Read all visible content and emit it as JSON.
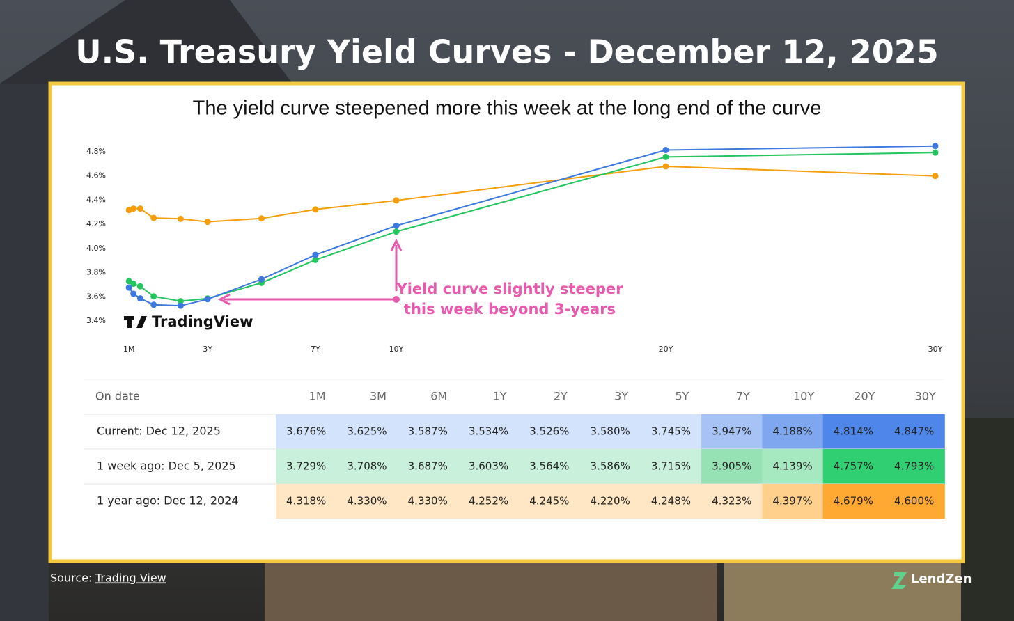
{
  "header": {
    "title": "U.S. Treasury Yield Curves - December 12, 2025"
  },
  "chart_data": {
    "type": "line",
    "title": "The yield curve steepened more this week at the long end of the curve",
    "x": [
      0.0833,
      0.25,
      0.5,
      1,
      2,
      3,
      5,
      7,
      10,
      20,
      30
    ],
    "xlim": [
      0,
      30
    ],
    "xticks": [
      {
        "value": 0.0833,
        "label": "1M"
      },
      {
        "value": 3,
        "label": "3Y"
      },
      {
        "value": 7,
        "label": "7Y"
      },
      {
        "value": 10,
        "label": "10Y"
      },
      {
        "value": 20,
        "label": "20Y"
      },
      {
        "value": 30,
        "label": "30Y"
      }
    ],
    "ylim": [
      3.3,
      4.9
    ],
    "yticks": [
      {
        "value": 3.4,
        "label": "3.4%"
      },
      {
        "value": 3.6,
        "label": "3.6%"
      },
      {
        "value": 3.8,
        "label": "3.8%"
      },
      {
        "value": 4.0,
        "label": "4.0%"
      },
      {
        "value": 4.2,
        "label": "4.2%"
      },
      {
        "value": 4.4,
        "label": "4.4%"
      },
      {
        "value": 4.6,
        "label": "4.6%"
      },
      {
        "value": 4.8,
        "label": "4.8%"
      }
    ],
    "series": [
      {
        "color": "#f59e0b",
        "values": [
          4.318,
          4.33,
          4.33,
          4.252,
          4.245,
          4.22,
          4.248,
          4.323,
          4.397,
          4.679,
          4.6
        ]
      },
      {
        "color": "#22c55e",
        "values": [
          3.729,
          3.708,
          3.687,
          3.603,
          3.564,
          3.586,
          3.715,
          3.905,
          4.139,
          4.757,
          4.793
        ]
      },
      {
        "color": "#3b78e0",
        "values": [
          3.676,
          3.625,
          3.587,
          3.534,
          3.526,
          3.58,
          3.745,
          3.947,
          4.188,
          4.814,
          4.847
        ]
      }
    ],
    "annotation": [
      "Yield curve slightly steeper",
      "this week beyond 3-years"
    ],
    "annotation_color": "#e85aad",
    "watermark": "TradingView"
  },
  "table": {
    "header": [
      "On date",
      "1M",
      "3M",
      "6M",
      "1Y",
      "2Y",
      "3Y",
      "5Y",
      "7Y",
      "10Y",
      "20Y",
      "30Y"
    ],
    "rows": [
      {
        "label": "Current: Dec 12, 2025",
        "cells": [
          "3.676%",
          "3.625%",
          "3.587%",
          "3.534%",
          "3.526%",
          "3.580%",
          "3.745%",
          "3.947%",
          "4.188%",
          "4.814%",
          "4.847%"
        ],
        "colors": [
          "#d3e3fb",
          "#d3e3fb",
          "#d3e3fb",
          "#d3e3fb",
          "#d3e3fb",
          "#d3e3fb",
          "#d3e3fb",
          "#a7c3f5",
          "#7ea7f0",
          "#4f86ea",
          "#4f86ea"
        ]
      },
      {
        "label": "1 week ago: Dec 5, 2025",
        "cells": [
          "3.729%",
          "3.708%",
          "3.687%",
          "3.603%",
          "3.564%",
          "3.586%",
          "3.715%",
          "3.905%",
          "4.139%",
          "4.757%",
          "4.793%"
        ],
        "colors": [
          "#c8f0da",
          "#c8f0da",
          "#c8f0da",
          "#c8f0da",
          "#c8f0da",
          "#c8f0da",
          "#c8f0da",
          "#96e2b5",
          "#a6e8c0",
          "#2fcf72",
          "#2fcf72"
        ]
      },
      {
        "label": "1 year ago: Dec 12, 2024",
        "cells": [
          "4.318%",
          "4.330%",
          "4.330%",
          "4.252%",
          "4.245%",
          "4.220%",
          "4.248%",
          "4.323%",
          "4.397%",
          "4.679%",
          "4.600%"
        ],
        "colors": [
          "#ffe6c4",
          "#ffe6c4",
          "#ffe6c4",
          "#ffe6c4",
          "#ffe6c4",
          "#ffe6c4",
          "#ffe6c4",
          "#ffe6c4",
          "#ffd08c",
          "#ffa832",
          "#ffa832"
        ]
      }
    ]
  },
  "footer": {
    "source_label": "Source:",
    "source_link": "Trading View",
    "brand": "LendZen"
  }
}
